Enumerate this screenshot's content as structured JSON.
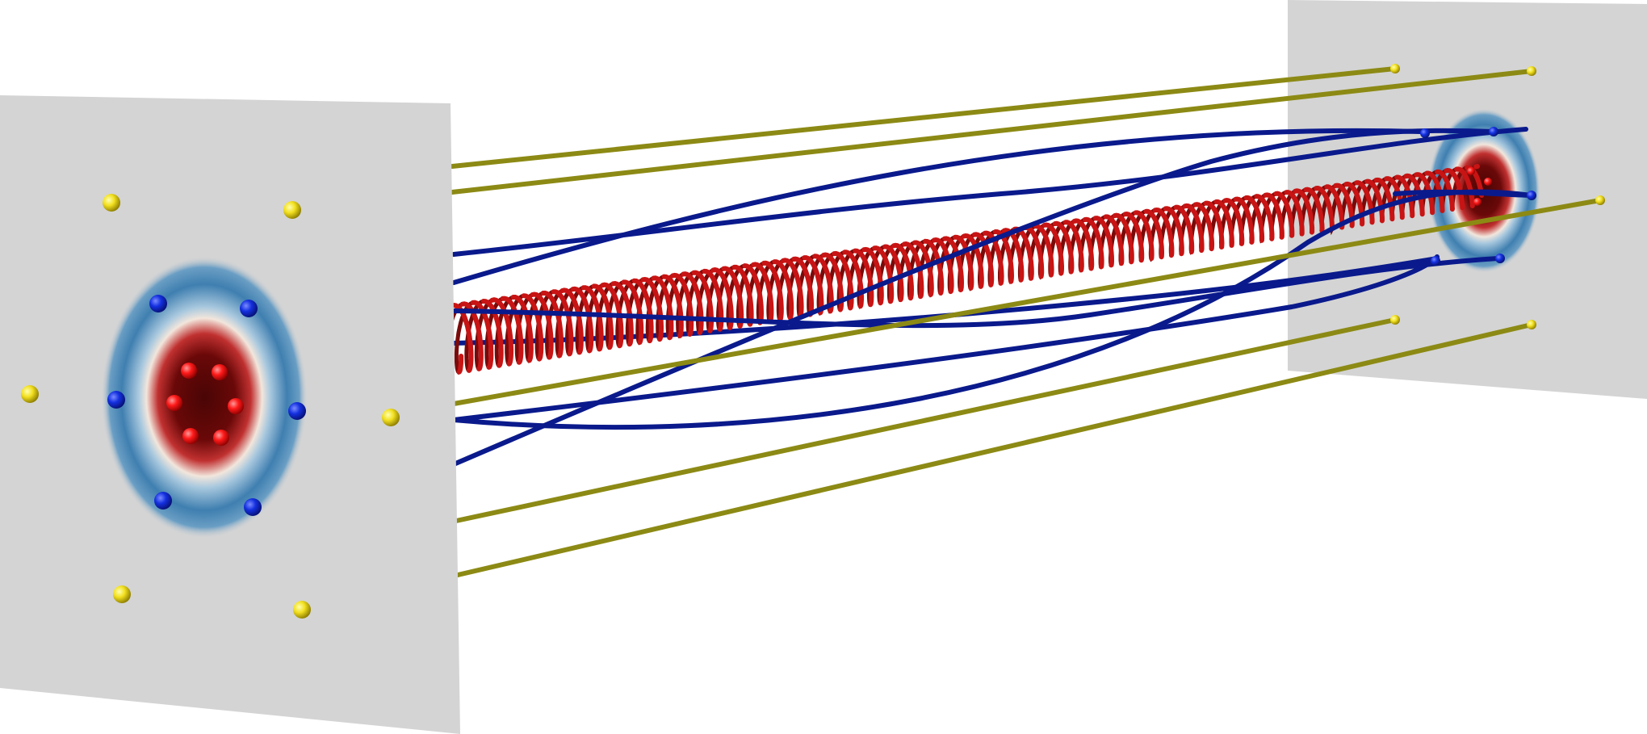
{
  "colors": {
    "background": "#ffffff",
    "plane": "#d4d4d4",
    "red_bundle": "#c81414",
    "red_bundle_dark": "#7a0a0a",
    "blue_lines": "#0a1a8c",
    "olive_lines": "#8c8a14",
    "yellow_seeds": "#ffee22",
    "blue_seeds": "#1430e0",
    "red_seeds": "#ff1a1a",
    "field_core": "#5a0a0a",
    "field_mid": "#c84040",
    "field_halo": "#4a8ab8"
  }
}
